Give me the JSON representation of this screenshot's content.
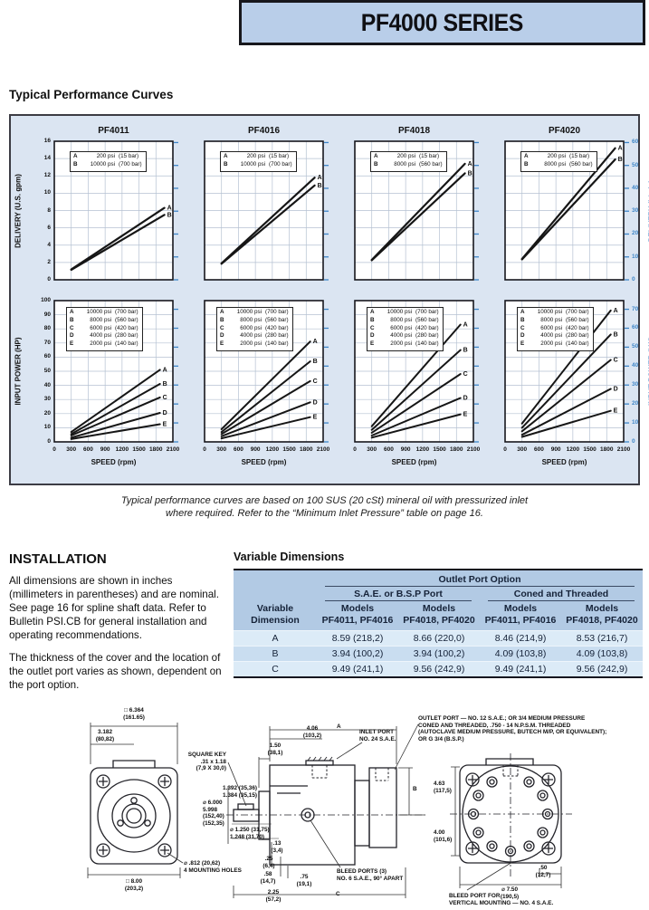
{
  "header": {
    "title": "PF4000 SERIES"
  },
  "sections": {
    "performance_title": "Typical Performance Curves",
    "caption_line1": "Typical performance curves are based on 100 SUS (20 cSt) mineral oil with pressurized inlet",
    "caption_line2": "where required. Refer to the “Minimum Inlet Pressure” table on page 16.",
    "installation_title": "INSTALLATION",
    "installation_p1": "All dimensions are shown in inches (millimeters in parentheses) and are nominal. See page 16 for spline shaft data. Refer to Bulletin PSI.CB for general installation and operating recommendations.",
    "installation_p2": "The thickness of the cover and the location of the outlet port varies as shown, dependent on the port option.",
    "dimensions_title": "Variable Dimensions"
  },
  "chart_data": {
    "type": "line",
    "x_axis": {
      "title": "SPEED (rpm)",
      "ticks": [
        0,
        300,
        600,
        900,
        1200,
        1500,
        1800,
        2100
      ],
      "range": [
        0,
        2100
      ]
    },
    "delivery_axis_gpm": {
      "title": "DELIVERY (U.S. gpm)",
      "ticks": [
        0,
        2,
        4,
        6,
        8,
        10,
        12,
        14,
        16
      ],
      "range": [
        0,
        16
      ]
    },
    "delivery_axis_lmin": {
      "title": "DELIVERY (L/min)",
      "ticks": [
        0,
        10,
        20,
        30,
        40,
        50,
        60
      ],
      "range": [
        0,
        60
      ]
    },
    "power_axis_hp": {
      "title": "INPUT POWER (HP)",
      "ticks": [
        0,
        10,
        20,
        30,
        40,
        50,
        60,
        70,
        80,
        90,
        100
      ],
      "range": [
        0,
        100
      ]
    },
    "power_axis_kw": {
      "title": "INPUT POWER (kW)",
      "ticks": [
        0,
        10,
        20,
        30,
        40,
        50,
        60,
        70
      ],
      "range": [
        0,
        70
      ]
    },
    "charts": [
      {
        "id": "pf4011-delivery",
        "title": "PF4011",
        "row": 0,
        "col": 0,
        "ylim": [
          0,
          16
        ],
        "ygrid": 2,
        "legend": [
          {
            "k": "A",
            "psi": "200 psi",
            "bar": "(15 bar)"
          },
          {
            "k": "B",
            "psi": "10000 psi",
            "bar": "(700 bar)"
          }
        ],
        "series": [
          {
            "name": "A",
            "points": [
              [
                300,
                1.2
              ],
              [
                1950,
                8.3
              ]
            ]
          },
          {
            "name": "B",
            "points": [
              [
                300,
                1.15
              ],
              [
                1950,
                7.5
              ]
            ]
          }
        ]
      },
      {
        "id": "pf4016-delivery",
        "title": "PF4016",
        "row": 0,
        "col": 1,
        "ylim": [
          0,
          16
        ],
        "ygrid": 2,
        "legend": [
          {
            "k": "A",
            "psi": "200 psi",
            "bar": "(15 bar)"
          },
          {
            "k": "B",
            "psi": "10000 psi",
            "bar": "(700 bar)"
          }
        ],
        "series": [
          {
            "name": "A",
            "points": [
              [
                300,
                1.9
              ],
              [
                1950,
                11.8
              ]
            ]
          },
          {
            "name": "B",
            "points": [
              [
                300,
                1.85
              ],
              [
                1950,
                10.9
              ]
            ]
          }
        ]
      },
      {
        "id": "pf4018-delivery",
        "title": "PF4018",
        "row": 0,
        "col": 2,
        "ylim": [
          0,
          16
        ],
        "ygrid": 2,
        "legend": [
          {
            "k": "A",
            "psi": "200 psi",
            "bar": "(15 bar)"
          },
          {
            "k": "B",
            "psi": "8000 psi",
            "bar": "(560 bar)"
          }
        ],
        "series": [
          {
            "name": "A",
            "points": [
              [
                300,
                2.3
              ],
              [
                1950,
                13.4
              ]
            ]
          },
          {
            "name": "B",
            "points": [
              [
                300,
                2.25
              ],
              [
                1950,
                12.3
              ]
            ]
          }
        ]
      },
      {
        "id": "pf4020-delivery",
        "title": "PF4020",
        "row": 0,
        "col": 3,
        "ylim": [
          0,
          16
        ],
        "ygrid": 2,
        "legend": [
          {
            "k": "A",
            "psi": "200 psi",
            "bar": "(15 bar)"
          },
          {
            "k": "B",
            "psi": "8000 psi",
            "bar": "(560 bar)"
          }
        ],
        "series": [
          {
            "name": "A",
            "points": [
              [
                300,
                2.4
              ],
              [
                1950,
                15.2
              ]
            ]
          },
          {
            "name": "B",
            "points": [
              [
                300,
                2.35
              ],
              [
                1950,
                13.9
              ]
            ]
          }
        ]
      },
      {
        "id": "pf4011-power",
        "row": 1,
        "col": 0,
        "ylim": [
          0,
          100
        ],
        "ygrid": 10,
        "legend": [
          {
            "k": "A",
            "psi": "10000 psi",
            "bar": "(700 bar)"
          },
          {
            "k": "B",
            "psi": "8000 psi",
            "bar": "(560 bar)"
          },
          {
            "k": "C",
            "psi": "6000 psi",
            "bar": "(420 bar)"
          },
          {
            "k": "D",
            "psi": "4000 psi",
            "bar": "(280 bar)"
          },
          {
            "k": "E",
            "psi": "2000 psi",
            "bar": "(140 bar)"
          }
        ],
        "series": [
          {
            "name": "A",
            "points": [
              [
                300,
                7
              ],
              [
                1870,
                51
              ]
            ]
          },
          {
            "name": "B",
            "points": [
              [
                300,
                5.5
              ],
              [
                1870,
                41
              ]
            ]
          },
          {
            "name": "C",
            "points": [
              [
                300,
                4.5
              ],
              [
                1870,
                31.5
              ]
            ]
          },
          {
            "name": "D",
            "points": [
              [
                300,
                3
              ],
              [
                1870,
                20.5
              ]
            ]
          },
          {
            "name": "E",
            "points": [
              [
                300,
                2
              ],
              [
                1870,
                12.5
              ]
            ]
          }
        ]
      },
      {
        "id": "pf4016-power",
        "row": 1,
        "col": 1,
        "ylim": [
          0,
          100
        ],
        "ygrid": 10,
        "legend": [
          {
            "k": "A",
            "psi": "10000 psi",
            "bar": "(700 bar)"
          },
          {
            "k": "B",
            "psi": "8000 psi",
            "bar": "(560 bar)"
          },
          {
            "k": "C",
            "psi": "6000 psi",
            "bar": "(420 bar)"
          },
          {
            "k": "D",
            "psi": "4000 psi",
            "bar": "(280 bar)"
          },
          {
            "k": "E",
            "psi": "2000 psi",
            "bar": "(140 bar)"
          }
        ],
        "series": [
          {
            "name": "A",
            "points": [
              [
                300,
                9
              ],
              [
                1870,
                71
              ]
            ]
          },
          {
            "name": "B",
            "points": [
              [
                300,
                7
              ],
              [
                1870,
                57
              ]
            ]
          },
          {
            "name": "C",
            "points": [
              [
                300,
                5.5
              ],
              [
                1870,
                43
              ]
            ]
          },
          {
            "name": "D",
            "points": [
              [
                300,
                4
              ],
              [
                1870,
                28
              ]
            ]
          },
          {
            "name": "E",
            "points": [
              [
                300,
                2.5
              ],
              [
                1870,
                17.5
              ]
            ]
          }
        ]
      },
      {
        "id": "pf4018-power",
        "row": 1,
        "col": 2,
        "ylim": [
          0,
          100
        ],
        "ygrid": 10,
        "legend": [
          {
            "k": "A",
            "psi": "10000 psi",
            "bar": "(700 bar)"
          },
          {
            "k": "B",
            "psi": "8000 psi",
            "bar": "(560 bar)"
          },
          {
            "k": "C",
            "psi": "6000 psi",
            "bar": "(420 bar)"
          },
          {
            "k": "D",
            "psi": "4000 psi",
            "bar": "(280 bar)"
          },
          {
            "k": "E",
            "psi": "2000 psi",
            "bar": "(140 bar)"
          }
        ],
        "series": [
          {
            "name": "A",
            "points": [
              [
                300,
                11
              ],
              [
                1870,
                83
              ]
            ]
          },
          {
            "name": "B",
            "points": [
              [
                300,
                8.5
              ],
              [
                1870,
                65
              ]
            ]
          },
          {
            "name": "C",
            "points": [
              [
                300,
                6.5
              ],
              [
                1870,
                48
              ]
            ]
          },
          {
            "name": "D",
            "points": [
              [
                300,
                4.5
              ],
              [
                1870,
                31
              ]
            ]
          },
          {
            "name": "E",
            "points": [
              [
                300,
                3
              ],
              [
                1870,
                19.5
              ]
            ]
          }
        ]
      },
      {
        "id": "pf4020-power",
        "row": 1,
        "col": 3,
        "ylim": [
          0,
          100
        ],
        "ygrid": 10,
        "legend": [
          {
            "k": "A",
            "psi": "10000 psi",
            "bar": "(700 bar)"
          },
          {
            "k": "B",
            "psi": "8000 psi",
            "bar": "(560 bar)"
          },
          {
            "k": "C",
            "psi": "6000 psi",
            "bar": "(420 bar)"
          },
          {
            "k": "D",
            "psi": "4000 psi",
            "bar": "(280 bar)"
          },
          {
            "k": "E",
            "psi": "2000 psi",
            "bar": "(140 bar)"
          }
        ],
        "series": [
          {
            "name": "A",
            "points": [
              [
                300,
                13
              ],
              [
                1870,
                93
              ]
            ]
          },
          {
            "name": "B",
            "points": [
              [
                300,
                10
              ],
              [
                1870,
                76
              ]
            ]
          },
          {
            "name": "C",
            "points": [
              [
                300,
                7.5
              ],
              [
                1870,
                58
              ]
            ]
          },
          {
            "name": "D",
            "points": [
              [
                300,
                5
              ],
              [
                1870,
                37.5
              ]
            ]
          },
          {
            "name": "E",
            "points": [
              [
                300,
                3.5
              ],
              [
                1870,
                22
              ]
            ]
          }
        ]
      }
    ]
  },
  "dimensions_table": {
    "group_header": "Outlet Port Option",
    "subgroups": [
      "S.A.E. or B.S.P Port",
      "Coned and Threaded"
    ],
    "col0_header": "Variable\nDimension",
    "col_headers": [
      "Models\nPF4011, PF4016",
      "Models\nPF4018, PF4020",
      "Models\nPF4011, PF4016",
      "Models\nPF4018, PF4020"
    ],
    "rows": [
      {
        "dim": "A",
        "values": [
          "8.59 (218,2)",
          "8.66 (220,0)",
          "8.46 (214,9)",
          "8.53 (216,7)"
        ]
      },
      {
        "dim": "B",
        "values": [
          "3.94 (100,2)",
          "3.94 (100,2)",
          "4.09 (103,8)",
          "4.09 (103,8)"
        ]
      },
      {
        "dim": "C",
        "values": [
          "9.49 (241,1)",
          "9.56 (242,9)",
          "9.49 (241,1)",
          "9.56 (242,9)"
        ]
      }
    ]
  },
  "drawings": {
    "labels": {
      "dim_6364": "□ 6.364\n(161.65)",
      "dim_3182": "3.182\n(80,82)",
      "dim_800": "□ 8.00\n(203,2)",
      "mounting_holes": "⌀ .812 (20,62)\n4 MOUNTING HOLES",
      "square_key": "SQUARE KEY\n.31 x 1.18\n(7,9 X 30,0)",
      "dim_150": "1.50\n(38,1)",
      "dim_406": "4.06\n(103,2)",
      "dim_a": "A",
      "inlet_port": "INLET PORT\nNO. 24 S.A.E.",
      "dim_1392": "1.392 (35,36)\n1.384 (35,15)",
      "dim_6000": "⌀ 6.000\n5.998\n(152,40)\n(152,35)",
      "dim_1250": "⌀ 1.250 (31,75)\n1.248 (31,70)",
      "dim_13": ".13\n(3,4)",
      "dim_25": ".25\n(6,4)",
      "dim_58": ".58\n(14,7)",
      "dim_225": "2.25\n(57,2)",
      "dim_75": ".75\n(19,1)",
      "bleed_ports": "BLEED PORTS (3)\nNO. 6 S.A.E., 90° APART",
      "dim_c": "C",
      "dim_b": "B",
      "dim_463": "4.63\n(117,5)",
      "dim_400": "4.00\n(101,6)",
      "outlet_port_note": "OUTLET PORT — NO. 12 S.A.E.; OR 3/4 MEDIUM PRESSURE\nCONED AND THREADED, .750 - 14 N.P.S.M. THREADED\n(AUTOCLAVE MEDIUM PRESSURE, BUTECH M/P, OR EQUIVALENT);\nOR G 3/4 (B.S.P.)",
      "dim_50": ".50\n(12,7)",
      "dim_750": "⌀ 7.50\n(190,5)",
      "bleed_port_vertical": "BLEED PORT FOR\nVERTICAL MOUNTING — NO. 4 S.A.E."
    }
  }
}
